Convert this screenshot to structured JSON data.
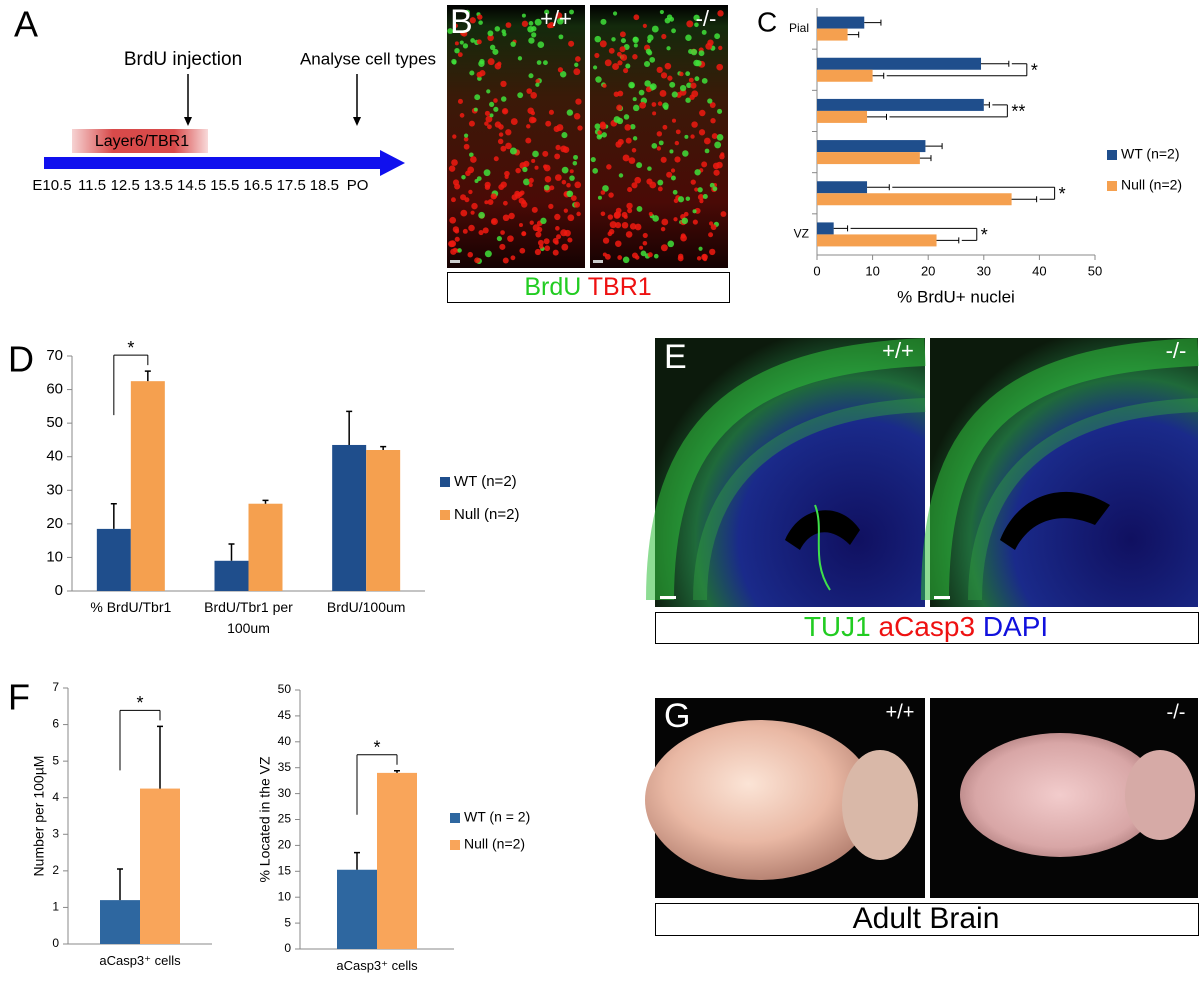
{
  "panel_labels": [
    "A",
    "B",
    "C",
    "D",
    "E",
    "F",
    "G"
  ],
  "timeline": {
    "band": "Layer6/TBR1",
    "events": [
      "BrdU injection",
      "Analyse cell types"
    ],
    "ticks": [
      "E10.5",
      "11.5",
      "12.5",
      "13.5",
      "14.5",
      "15.5",
      "16.5",
      "17.5",
      "18.5",
      "PO"
    ]
  },
  "panel_B": {
    "genotypes": [
      "+/+",
      "-/-"
    ],
    "caption": [
      "BrdU",
      "TBR1"
    ],
    "caption_colors": [
      "#22cc22",
      "#ee1111"
    ]
  },
  "panel_E": {
    "genotypes": [
      "+/+",
      "-/-"
    ],
    "caption": [
      "TUJ1",
      "aCasp3",
      "DAPI"
    ],
    "caption_colors": [
      "#22cc22",
      "#ee1111",
      "#1111dd"
    ]
  },
  "panel_G": {
    "genotypes": [
      "+/+",
      "-/-"
    ],
    "caption": [
      "Adult Brain"
    ],
    "caption_colors": [
      "#000000"
    ]
  },
  "chart_data": [
    {
      "type": "bar",
      "orientation": "horizontal",
      "categories": [
        "Pial",
        null,
        null,
        null,
        null,
        "VZ"
      ],
      "series": [
        {
          "name": "WT (n=2)",
          "color": "#1f4e8c",
          "values": [
            8.5,
            29.5,
            30,
            19.5,
            9,
            3
          ],
          "errors": [
            3,
            5,
            1,
            3,
            4,
            2.5
          ]
        },
        {
          "name": "Null (n=2)",
          "color": "#f5a04f",
          "values": [
            5.5,
            10,
            9,
            18.5,
            35,
            21.5
          ],
          "errors": [
            2,
            2,
            3.5,
            2,
            4.5,
            4
          ]
        }
      ],
      "xlim": [
        0,
        50
      ],
      "xticks": [
        0,
        10,
        20,
        30,
        40,
        50
      ],
      "xlabel": "% BrdU+ nuclei",
      "significance": [
        null,
        "*",
        "**",
        null,
        "*",
        "*"
      ]
    },
    {
      "type": "bar",
      "categories": [
        "% BrdU/Tbr1",
        "BrdU/Tbr1 per 100um",
        "BrdU/100um"
      ],
      "series": [
        {
          "name": "WT (n=2)",
          "color": "#1f4e8c",
          "values": [
            18.5,
            9,
            43.5
          ],
          "errors": [
            7.5,
            5,
            10
          ]
        },
        {
          "name": "Null (n=2)",
          "color": "#f5a04f",
          "values": [
            62.5,
            26,
            42
          ],
          "errors": [
            3,
            1,
            1
          ]
        }
      ],
      "ylim": [
        0,
        70
      ],
      "yticks": [
        0,
        10,
        20,
        30,
        40,
        50,
        60,
        70
      ],
      "significance": [
        "*",
        null,
        null
      ]
    },
    {
      "type": "bar",
      "categories": [
        "aCasp3⁺ cells"
      ],
      "series": [
        {
          "color": "#2e67a0",
          "values": [
            1.2
          ],
          "errors": [
            0.85
          ]
        },
        {
          "color": "#f9a55a",
          "values": [
            4.25
          ],
          "errors": [
            1.7
          ]
        }
      ],
      "ylim": [
        0,
        7
      ],
      "yticks": [
        0,
        1,
        2,
        3,
        4,
        5,
        6,
        7
      ],
      "ylabel": "Number per 100µM",
      "significance": [
        "*"
      ]
    },
    {
      "type": "bar",
      "categories": [
        "aCasp3⁺ cells"
      ],
      "series": [
        {
          "name": "WT (n = 2)",
          "color": "#2e67a0",
          "values": [
            15.3
          ],
          "errors": [
            3.3
          ]
        },
        {
          "name": "Null (n=2)",
          "color": "#f9a55a",
          "values": [
            34
          ],
          "errors": [
            0.4
          ]
        }
      ],
      "ylim": [
        0,
        50
      ],
      "yticks": [
        0,
        5,
        10,
        15,
        20,
        25,
        30,
        35,
        40,
        45,
        50
      ],
      "ylabel": "% Located in the VZ",
      "significance": [
        "*"
      ]
    }
  ]
}
